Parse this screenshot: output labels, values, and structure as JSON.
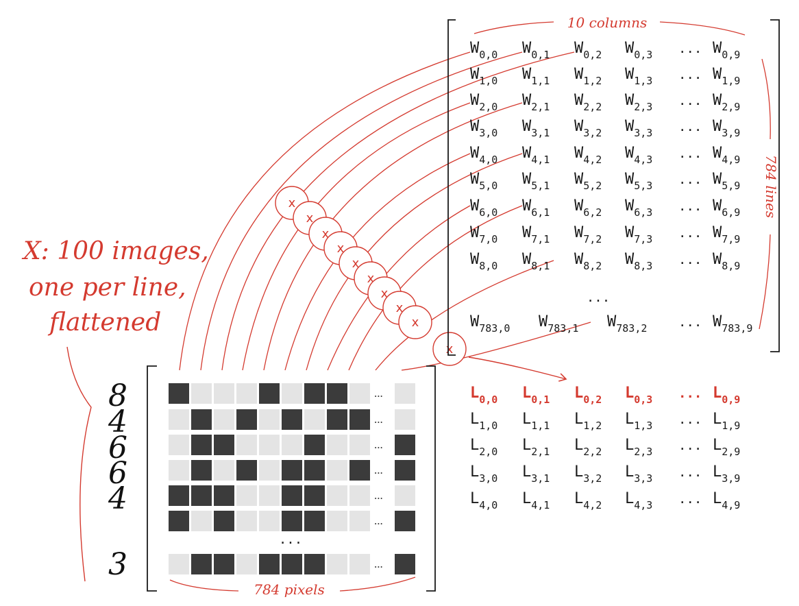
{
  "colors": {
    "accent": "#d43a2f",
    "ink": "#1a1a1a",
    "dark_cell": "#3b3b3b",
    "light_cell": "#e4e4e4"
  },
  "annotations": {
    "x_label_line1": "X: 100 images,",
    "x_label_line2": "one per line,",
    "x_label_line3": "flattened",
    "columns_label": "10 columns",
    "lines_label": "784 lines",
    "pixels_label": "784 pixels",
    "ellipsis": "...",
    "multiply_symbol": "x"
  },
  "digits": [
    "8",
    "4",
    "6",
    "6",
    "4",
    "3"
  ],
  "pixel_rows": [
    [
      1,
      0,
      0,
      0,
      1,
      0,
      1,
      1,
      0,
      0
    ],
    [
      0,
      1,
      0,
      1,
      0,
      1,
      0,
      1,
      1,
      0
    ],
    [
      0,
      1,
      1,
      0,
      0,
      0,
      1,
      0,
      0,
      1
    ],
    [
      0,
      1,
      0,
      1,
      0,
      1,
      1,
      0,
      1,
      1
    ],
    [
      1,
      1,
      1,
      0,
      0,
      1,
      1,
      0,
      0,
      0
    ],
    [
      1,
      0,
      1,
      0,
      0,
      1,
      1,
      0,
      0,
      1
    ],
    [
      0,
      1,
      1,
      0,
      1,
      1,
      1,
      0,
      0,
      1
    ]
  ],
  "weights": {
    "letter": "W",
    "rows": [
      [
        "0,0",
        "0,1",
        "0,2",
        "0,3",
        "0,9"
      ],
      [
        "1,0",
        "1,1",
        "1,2",
        "1,3",
        "1,9"
      ],
      [
        "2,0",
        "2,1",
        "2,2",
        "2,3",
        "2,9"
      ],
      [
        "3,0",
        "3,1",
        "3,2",
        "3,3",
        "3,9"
      ],
      [
        "4,0",
        "4,1",
        "4,2",
        "4,3",
        "4,9"
      ],
      [
        "5,0",
        "5,1",
        "5,2",
        "5,3",
        "5,9"
      ],
      [
        "6,0",
        "6,1",
        "6,2",
        "6,3",
        "6,9"
      ],
      [
        "7,0",
        "7,1",
        "7,2",
        "7,3",
        "7,9"
      ],
      [
        "8,0",
        "8,1",
        "8,2",
        "8,3",
        "8,9"
      ],
      [
        "783,0",
        "783,1",
        "783,2",
        "",
        "783,9"
      ]
    ]
  },
  "logits": {
    "letter": "L",
    "rows": [
      [
        "0,0",
        "0,1",
        "0,2",
        "0,3",
        "0,9"
      ],
      [
        "1,0",
        "1,1",
        "1,2",
        "1,3",
        "1,9"
      ],
      [
        "2,0",
        "2,1",
        "2,2",
        "2,3",
        "2,9"
      ],
      [
        "3,0",
        "3,1",
        "3,2",
        "3,3",
        "3,9"
      ],
      [
        "4,0",
        "4,1",
        "4,2",
        "4,3",
        "4,9"
      ]
    ]
  }
}
